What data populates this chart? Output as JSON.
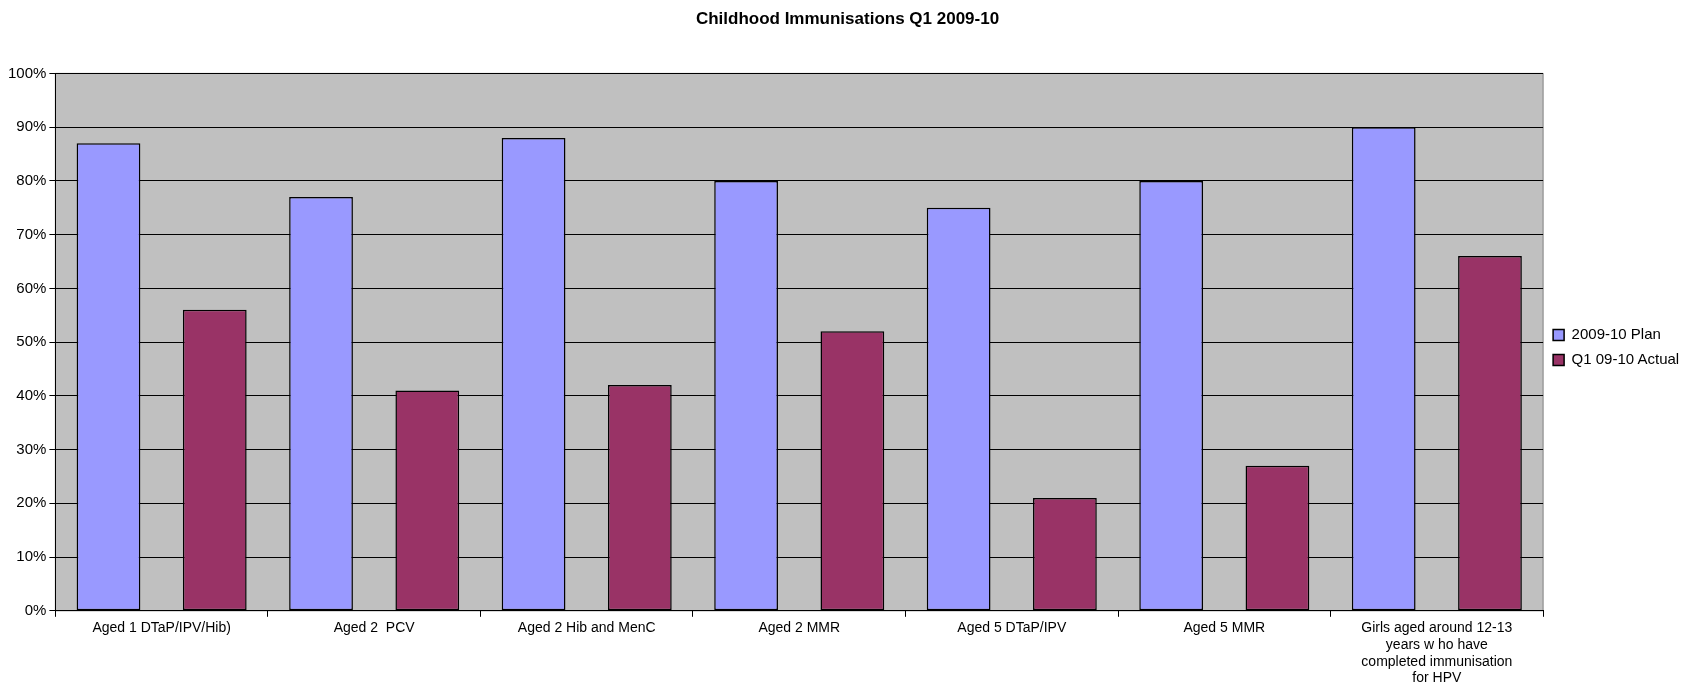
{
  "chart_data": {
    "type": "bar",
    "title": "Childhood Immunisations Q1 2009-10",
    "categories": [
      "Aged 1 DTaP/IPV/Hib)",
      "Aged 2  PCV",
      "Aged 2 Hib and MenC",
      "Aged 2 MMR",
      "Aged 5 DTaP/IPV",
      "Aged 5 MMR",
      "Girls aged around 12-13 years w ho have completed immunisation for HPV"
    ],
    "series": [
      {
        "name": "2009-10 Plan",
        "color": "#9999ff",
        "values": [
          87,
          77,
          88,
          80,
          75,
          80,
          90
        ]
      },
      {
        "name": "Q1 09-10 Actual",
        "color": "#993366",
        "values": [
          56,
          41,
          42,
          52,
          21,
          27,
          66
        ]
      }
    ],
    "ylim": [
      0,
      100
    ],
    "yticks": [
      {
        "value": 0,
        "label": "0%"
      },
      {
        "value": 10,
        "label": "10%"
      },
      {
        "value": 20,
        "label": "20%"
      },
      {
        "value": 30,
        "label": "30%"
      },
      {
        "value": 40,
        "label": "40%"
      },
      {
        "value": 50,
        "label": "50%"
      },
      {
        "value": 60,
        "label": "60%"
      },
      {
        "value": 70,
        "label": "70%"
      },
      {
        "value": 80,
        "label": "80%"
      },
      {
        "value": 90,
        "label": "90%"
      },
      {
        "value": 100,
        "label": "100%"
      }
    ],
    "grid": "y",
    "legend": "right"
  }
}
